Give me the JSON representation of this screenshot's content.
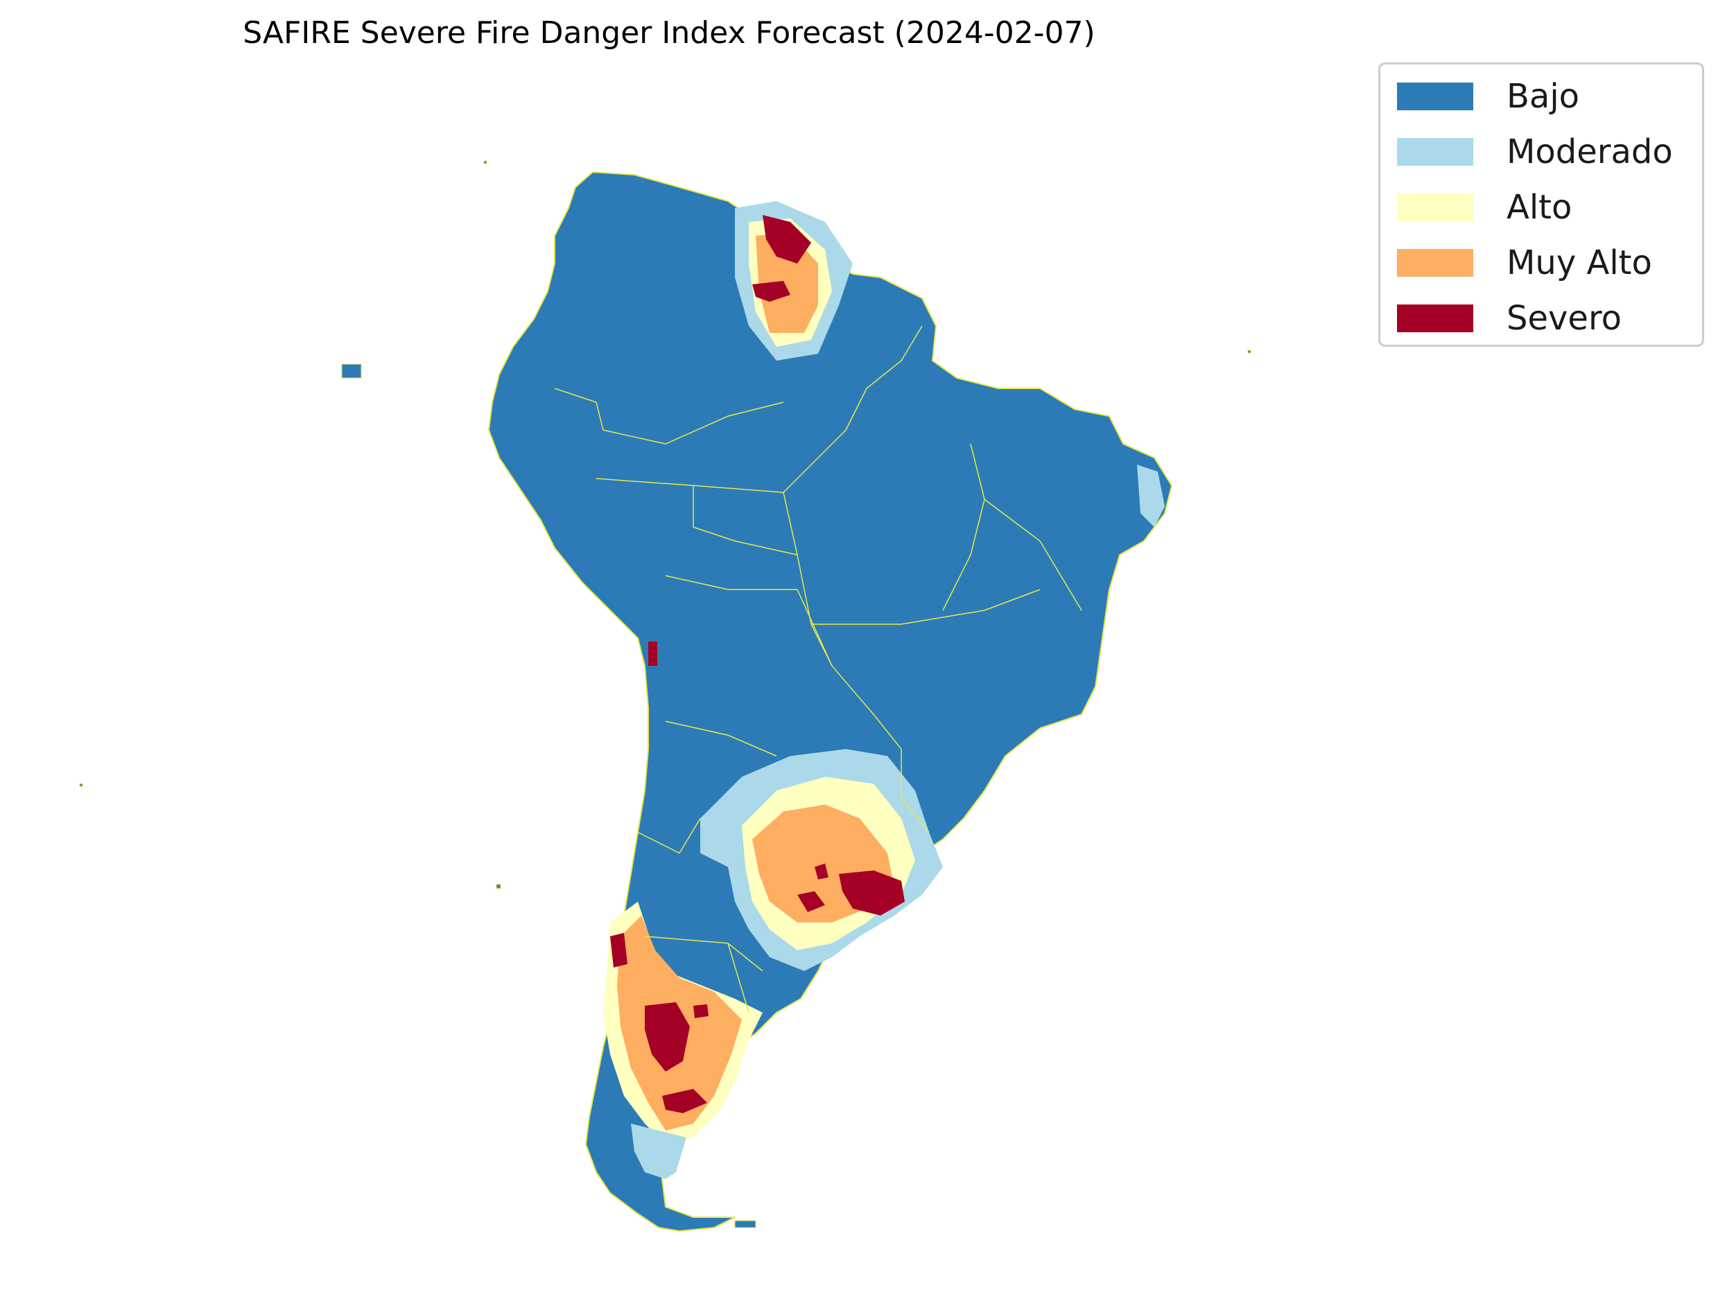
{
  "title": "SAFIRE Severe Fire Danger Index Forecast (2024-02-07)",
  "legend": {
    "items": [
      {
        "label": "Bajo",
        "color": "#2c7bb6"
      },
      {
        "label": "Moderado",
        "color": "#abd9e9"
      },
      {
        "label": "Alto",
        "color": "#ffffbf"
      },
      {
        "label": "Muy Alto",
        "color": "#fdae61"
      },
      {
        "label": "Severo",
        "color": "#a50026"
      }
    ]
  },
  "map": {
    "region": "South America",
    "boundary_color": "#e8e84a",
    "background": "#ffffff"
  }
}
